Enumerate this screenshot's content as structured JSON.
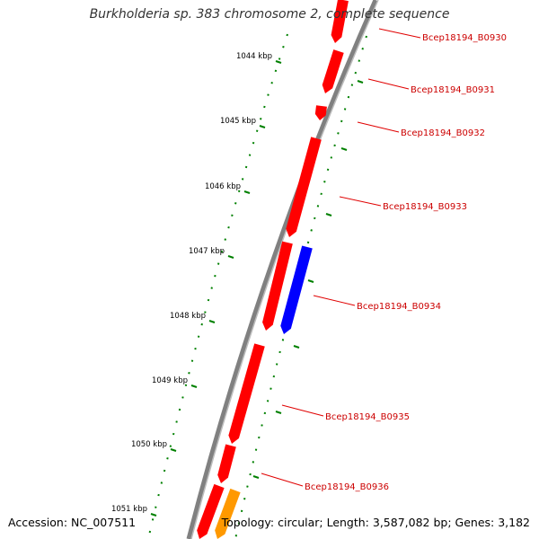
{
  "title": "Burkholderia sp. 383 chromosome 2, complete sequence",
  "footer": {
    "accession": "Accession: NC_007511",
    "topology": "Topology: circular; Length: 3,587,082 bp; Genes: 3,182"
  },
  "colors": {
    "backbone": "#808080",
    "gene_forward": "#ff0000",
    "gene_reverse": "#0000ff",
    "gene_other": "#ff9900",
    "gc_ticks": "#008000",
    "label_line": "#e00000",
    "label_text": "#cc0000"
  },
  "scale": {
    "unit": "kbp",
    "ticks": [
      "1044 kbp",
      "1045 kbp",
      "1046 kbp",
      "1047 kbp",
      "1048 kbp",
      "1049 kbp",
      "1050 kbp",
      "1051 kbp"
    ]
  },
  "genes": [
    {
      "label": "Bcep18194_B0930",
      "color": "gene_forward"
    },
    {
      "label": "Bcep18194_B0931",
      "color": "gene_forward"
    },
    {
      "label": "Bcep18194_B0932",
      "color": "gene_forward"
    },
    {
      "label": "Bcep18194_B0933",
      "color": "gene_forward"
    },
    {
      "label": "Bcep18194_B0934",
      "color": "gene_forward"
    },
    {
      "label": "",
      "color": "gene_reverse"
    },
    {
      "label": "Bcep18194_B0935",
      "color": "gene_forward"
    },
    {
      "label": "Bcep18194_B0936",
      "color": "gene_forward"
    },
    {
      "label": "",
      "color": "gene_forward"
    },
    {
      "label": "",
      "color": "gene_other"
    }
  ]
}
